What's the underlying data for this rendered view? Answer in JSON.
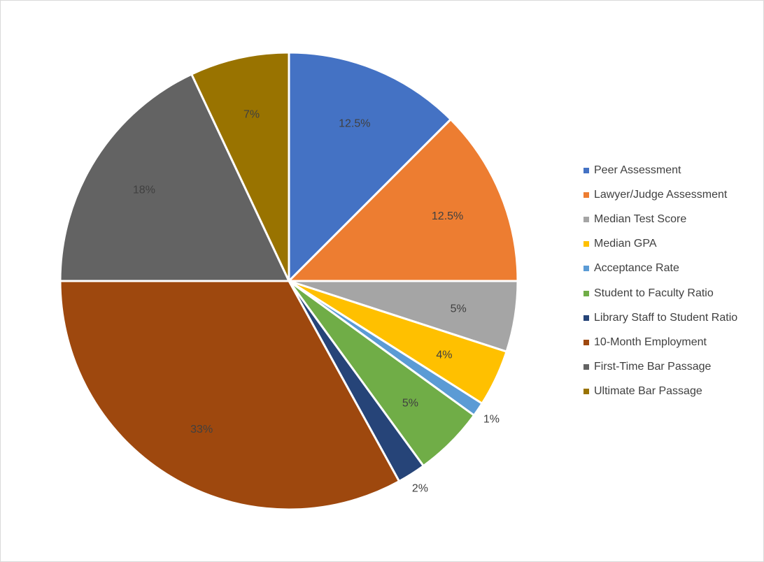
{
  "chart_data": {
    "type": "pie",
    "title": "",
    "start_angle_deg": 0,
    "direction": "clockwise",
    "legend_position": "right",
    "slices": [
      {
        "name": "Peer Assessment",
        "value": 12.5,
        "label": "12.5%",
        "color": "#4472C4"
      },
      {
        "name": "Lawyer/Judge Assessment",
        "value": 12.5,
        "label": "12.5%",
        "color": "#ED7D31"
      },
      {
        "name": "Median Test Score",
        "value": 5,
        "label": "5%",
        "color": "#A5A5A5"
      },
      {
        "name": "Median GPA",
        "value": 4,
        "label": "4%",
        "color": "#FFC000"
      },
      {
        "name": "Acceptance Rate",
        "value": 1,
        "label": "1%",
        "color": "#5B9BD5"
      },
      {
        "name": "Student to Faculty Ratio",
        "value": 5,
        "label": "5%",
        "color": "#70AD47"
      },
      {
        "name": "Library Staff to Student Ratio",
        "value": 2,
        "label": "2%",
        "color": "#264478"
      },
      {
        "name": "10-Month Employment",
        "value": 33,
        "label": "33%",
        "color": "#9E480E"
      },
      {
        "name": "First-Time Bar Passage",
        "value": 18,
        "label": "18%",
        "color": "#636363"
      },
      {
        "name": "Ultimate Bar Passage",
        "value": 7,
        "label": "7%",
        "color": "#997300"
      }
    ]
  }
}
